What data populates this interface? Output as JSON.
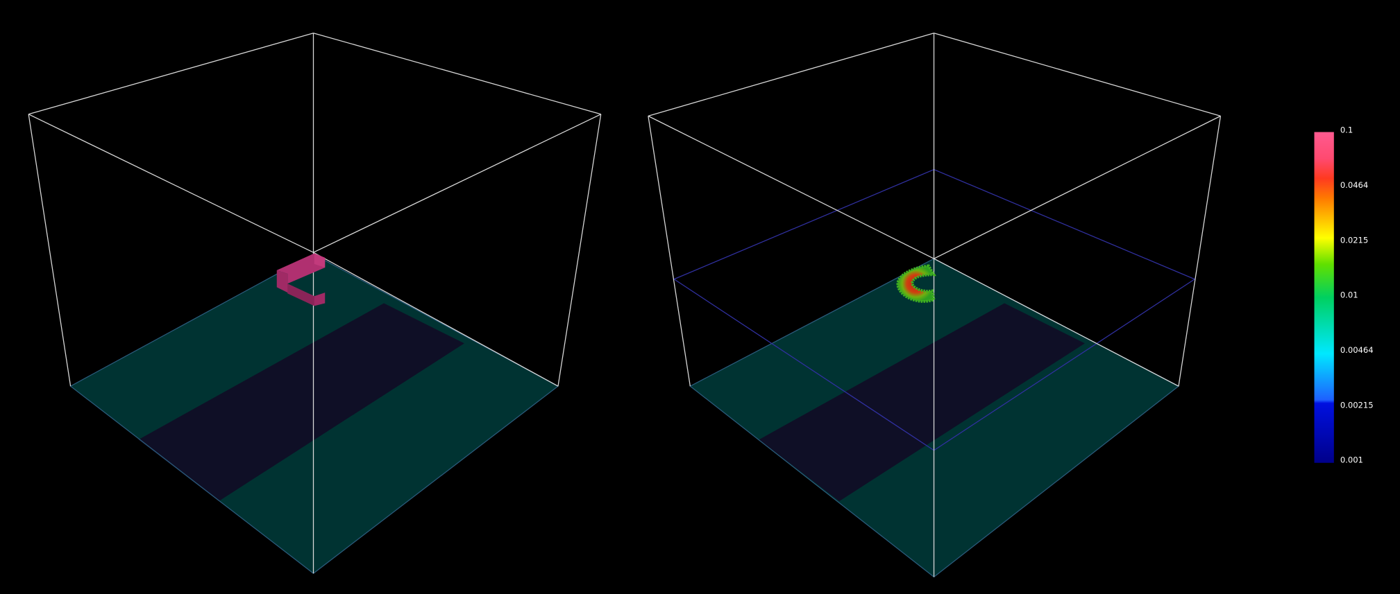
{
  "colorbar": {
    "ticks": [
      0.1,
      0.0464,
      0.0215,
      0.01,
      0.00464,
      0.00215,
      0.001
    ]
  }
}
